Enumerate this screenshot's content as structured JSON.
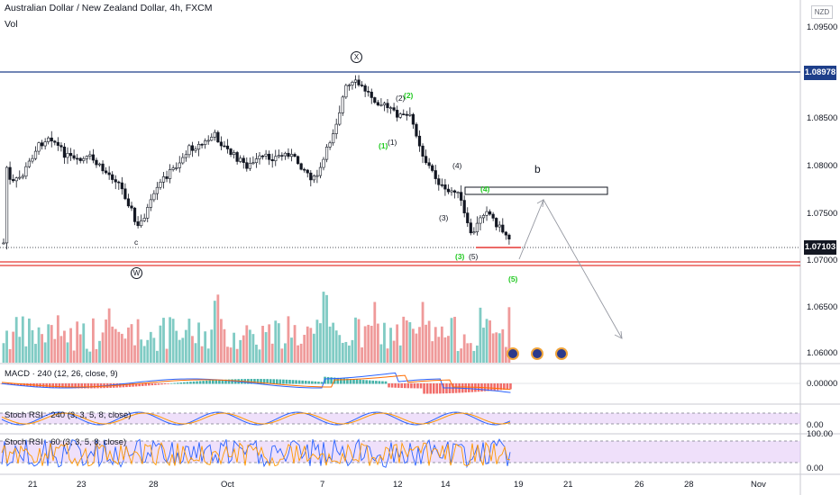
{
  "header": {
    "title": "Australian Dollar / New Zealand Dollar, 4h, FXCM",
    "volume_label": "Vol",
    "currency_badge": "NZD"
  },
  "price_axis": {
    "ticks": [
      "1.09500",
      "1.08500",
      "1.08000",
      "1.07500",
      "1.07000",
      "1.06500",
      "1.06000"
    ],
    "resistance_tag": "1.08978",
    "current_tag": "1.07103"
  },
  "wave_labels": {
    "x": "X",
    "w": "W",
    "c": "c",
    "b": "b",
    "w1": "(1)",
    "w2": "(2)",
    "w3": "(3)",
    "w4": "(4)",
    "w5": "(5)",
    "g1": "(1)",
    "g2": "(2)",
    "g3": "(3)",
    "g4": "(4)",
    "g5": "(5)"
  },
  "indicators": {
    "macd": {
      "label": "MACD · 240 (12, 26, close, 9)",
      "tick": "0.00000"
    },
    "stoch240": {
      "label": "Stoch RSI · 240 (3, 3, 5, 8, close)",
      "tick": "0.00"
    },
    "stoch60": {
      "label": "Stoch RSI · 60 (3, 3, 5, 8, close)",
      "tick_top": "100.00",
      "tick_bottom": "0.00"
    }
  },
  "time_axis": [
    "21",
    "23",
    "28",
    "Oct",
    "7",
    "12",
    "14",
    "19",
    "21",
    "26",
    "28",
    "Nov"
  ],
  "colors": {
    "up": "#131722",
    "resistance": "#1e3f8a",
    "support": "#e53935",
    "vol_up": "#80cbc4",
    "vol_down": "#ef9a9a",
    "macd_line": "#2962ff",
    "signal_line": "#ff6d00",
    "stoch_bg": "#e1c6f5",
    "stoch_k": "#2962ff",
    "stoch_d": "#ff9800",
    "wave_green": "#22c922"
  }
}
